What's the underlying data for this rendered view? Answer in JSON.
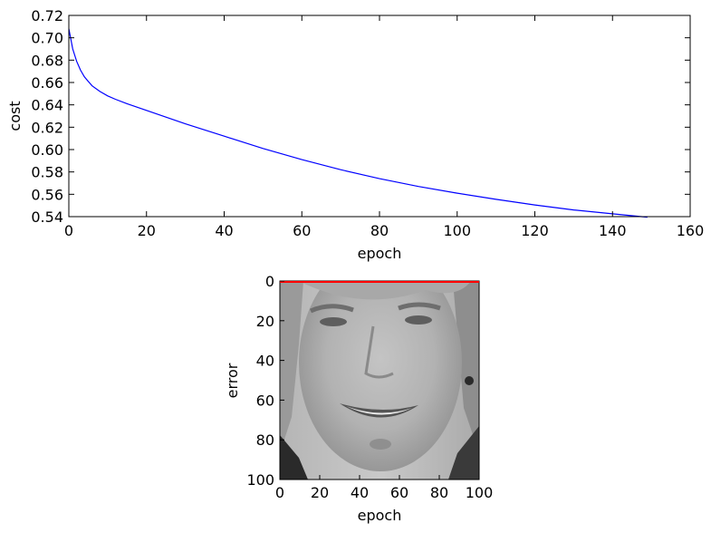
{
  "chart_data": [
    {
      "type": "line",
      "title": "",
      "xlabel": "epoch",
      "ylabel": "cost",
      "xlim": [
        0,
        160
      ],
      "ylim": [
        0.54,
        0.72
      ],
      "xticks": [
        "0",
        "20",
        "40",
        "60",
        "80",
        "100",
        "120",
        "140",
        "160"
      ],
      "yticks": [
        "0.54",
        "0.56",
        "0.58",
        "0.60",
        "0.62",
        "0.64",
        "0.66",
        "0.68",
        "0.70",
        "0.72"
      ],
      "grid": false,
      "series": [
        {
          "color": "#0000ff",
          "x": [
            0,
            1,
            2,
            3,
            4,
            5,
            6,
            8,
            10,
            12,
            15,
            20,
            25,
            30,
            40,
            50,
            60,
            70,
            80,
            90,
            100,
            110,
            120,
            130,
            140,
            149
          ],
          "y": [
            0.708,
            0.69,
            0.679,
            0.671,
            0.665,
            0.661,
            0.657,
            0.652,
            0.648,
            0.645,
            0.641,
            0.635,
            0.629,
            0.623,
            0.612,
            0.601,
            0.591,
            0.582,
            0.574,
            0.567,
            0.561,
            0.5555,
            0.5505,
            0.546,
            0.5425,
            0.5395
          ]
        }
      ]
    },
    {
      "type": "image",
      "xlabel": "epoch",
      "ylabel": "error",
      "xlim": [
        0,
        100
      ],
      "ylim": [
        100,
        0
      ],
      "xticks": [
        "0",
        "20",
        "40",
        "60",
        "80",
        "100"
      ],
      "yticks": [
        "0",
        "20",
        "40",
        "60",
        "80",
        "100"
      ],
      "image_content": "grayscale photo of a smiling man's face",
      "overlay_line": {
        "color": "#ff0000",
        "y": 0
      }
    }
  ]
}
